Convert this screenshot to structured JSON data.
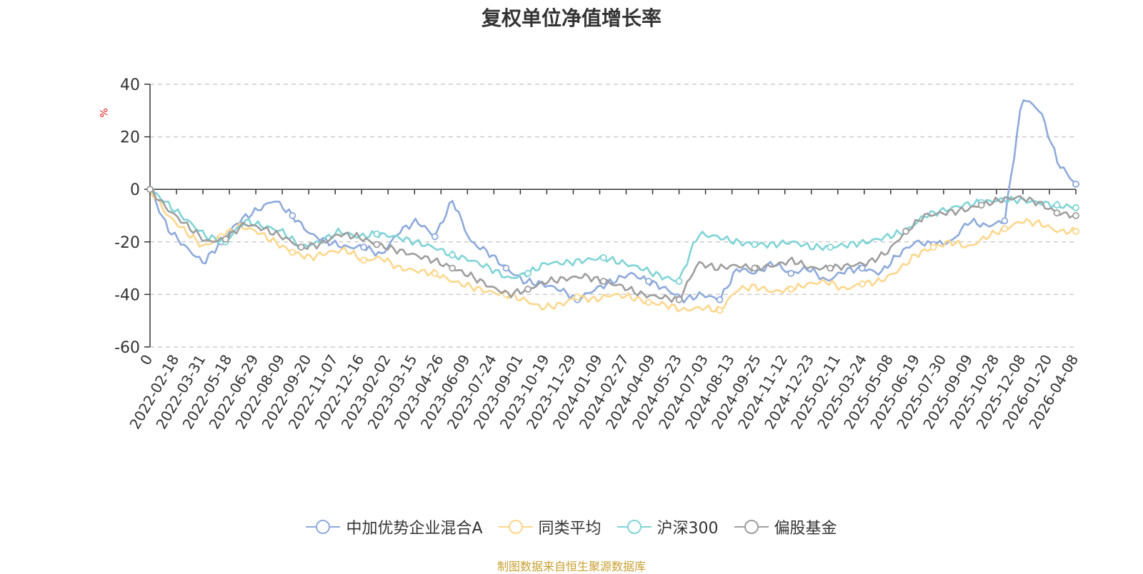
{
  "chart_data": {
    "type": "line",
    "title": "复权单位净值增长率",
    "ylabel": "%",
    "ylim": [
      -60,
      40
    ],
    "yticks": [
      40,
      20,
      0,
      -20,
      -40,
      -60
    ],
    "x_tick_labels": [
      "0",
      "2022-02-18",
      "2022-03-31",
      "2022-05-18",
      "2022-06-29",
      "2022-08-09",
      "2022-09-20",
      "2022-11-07",
      "2022-12-16",
      "2023-02-02",
      "2023-03-15",
      "2023-04-26",
      "2023-06-09",
      "2023-07-24",
      "2023-09-01",
      "2023-10-19",
      "2023-11-29",
      "2024-01-09",
      "2024-02-27",
      "2024-04-09",
      "2024-05-23",
      "2024-07-03",
      "2024-08-13",
      "2024-09-25",
      "2024-11-12",
      "2024-12-23",
      "2025-02-11",
      "2025-03-24",
      "2025-05-08",
      "2025-06-19",
      "2025-07-30",
      "2025-09-09",
      "2025-10-28",
      "2025-12-08",
      "2026-01-20",
      "2026-04-08"
    ],
    "grid": true,
    "legend_position": "bottom",
    "series": [
      {
        "name": "中加优势企业混合A",
        "color": "#8eaadb",
        "values": [
          0,
          -15,
          -22,
          -28,
          -20,
          -12,
          -8,
          -4,
          -10,
          -17,
          -20,
          -22,
          -22,
          -25,
          -16,
          -12,
          -18,
          -4,
          -20,
          -24,
          -30,
          -35,
          -36,
          -38,
          -42,
          -38,
          -35,
          -32,
          -35,
          -38,
          -42,
          -40,
          -42,
          -30,
          -32,
          -28,
          -32,
          -30,
          -35,
          -31,
          -30,
          -32,
          -25,
          -20,
          -21,
          -20,
          -12,
          -14,
          -12,
          35,
          30,
          10,
          2
        ]
      },
      {
        "name": "同类平均",
        "color": "#fdd78c",
        "values": [
          0,
          -10,
          -16,
          -22,
          -18,
          -14,
          -16,
          -20,
          -24,
          -26,
          -24,
          -23,
          -27,
          -26,
          -30,
          -31,
          -32,
          -35,
          -37,
          -39,
          -40,
          -42,
          -45,
          -44,
          -41,
          -42,
          -40,
          -41,
          -43,
          -44,
          -46,
          -45,
          -46,
          -38,
          -37,
          -39,
          -38,
          -36,
          -35,
          -38,
          -36,
          -35,
          -31,
          -25,
          -22,
          -20,
          -22,
          -18,
          -15,
          -12,
          -13,
          -16,
          -16
        ]
      },
      {
        "name": "沪深300",
        "color": "#80d4d6",
        "values": [
          0,
          -6,
          -12,
          -18,
          -20,
          -12,
          -14,
          -16,
          -22,
          -20,
          -16,
          -18,
          -17,
          -18,
          -20,
          -22,
          -25,
          -27,
          -30,
          -34,
          -32,
          -28,
          -28,
          -27,
          -26,
          -28,
          -30,
          -33,
          -35,
          -17,
          -18,
          -20,
          -21,
          -21,
          -20,
          -22,
          -22,
          -21,
          -20,
          -18,
          -16,
          -10,
          -8,
          -6,
          -5,
          -4,
          -4,
          -5,
          -6,
          -7
        ]
      },
      {
        "name": "偏股基金",
        "color": "#9e9e9e",
        "values": [
          0,
          -8,
          -14,
          -20,
          -19,
          -13,
          -15,
          -18,
          -22,
          -21,
          -17,
          -18,
          -21,
          -23,
          -25,
          -27,
          -30,
          -33,
          -37,
          -40,
          -38,
          -35,
          -34,
          -33,
          -35,
          -37,
          -40,
          -41,
          -42,
          -28,
          -30,
          -29,
          -30,
          -29,
          -27,
          -30,
          -30,
          -29,
          -28,
          -24,
          -16,
          -10,
          -9,
          -8,
          -6,
          -4,
          -3,
          -5,
          -9,
          -10
        ]
      }
    ]
  },
  "footer": {
    "source": "制图数据来自恒生聚源数据库"
  }
}
